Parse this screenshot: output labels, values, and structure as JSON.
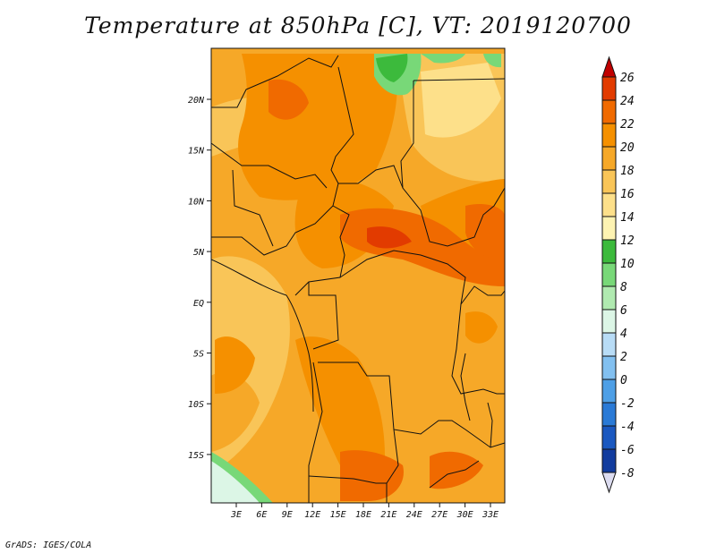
{
  "title": "Temperature at 850hPa [C], VT: 2019120700",
  "footer": "GrADS: IGES/COLA",
  "map": {
    "x_ticks": [
      "3E",
      "6E",
      "9E",
      "12E",
      "15E",
      "18E",
      "21E",
      "24E",
      "27E",
      "30E",
      "33E"
    ],
    "y_ticks": [
      "20N",
      "15N",
      "10N",
      "5N",
      "EQ",
      "5S",
      "10S",
      "15S"
    ]
  },
  "colorbar": {
    "labels": [
      "26",
      "24",
      "22",
      "20",
      "18",
      "16",
      "14",
      "12",
      "10",
      "8",
      "6",
      "4",
      "2",
      "0",
      "-2",
      "-4",
      "-6",
      "-8"
    ],
    "colors": [
      "#c00000",
      "#e23b00",
      "#f06a00",
      "#f59000",
      "#f6a828",
      "#f9c558",
      "#fde08a",
      "#fdf3b2",
      "#3cba3c",
      "#78d878",
      "#b0eab0",
      "#dcf6e6",
      "#b8dcf6",
      "#82c0f0",
      "#4e9fe6",
      "#2a7ad6",
      "#1a58c0",
      "#123c9e",
      "#0a1e6e",
      "#dcdcf0"
    ]
  }
}
